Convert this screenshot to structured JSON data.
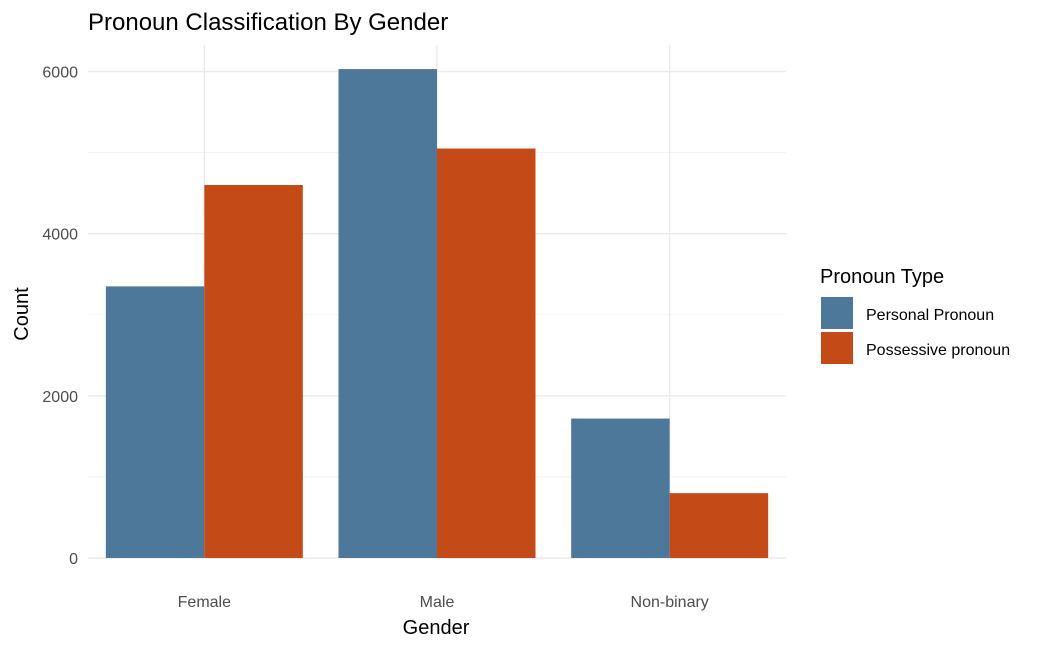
{
  "chart_data": {
    "type": "bar",
    "title": "Pronoun Classification By Gender",
    "xlabel": "Gender",
    "ylabel": "Count",
    "categories": [
      "Female",
      "Male",
      "Non-binary"
    ],
    "series": [
      {
        "name": "Personal Pronoun",
        "color": "#4e7899",
        "values": [
          3350,
          6030,
          1720
        ]
      },
      {
        "name": "Possessive pronoun",
        "color": "#c44a18",
        "values": [
          4600,
          5050,
          800
        ]
      }
    ],
    "ylim": [
      0,
      6300
    ],
    "y_ticks": [
      0,
      2000,
      4000,
      6000
    ],
    "y_tick_labels": [
      "0",
      "2000",
      "4000",
      "6000"
    ],
    "grid": true,
    "legend": {
      "title": "Pronoun Type",
      "placement": "right"
    }
  }
}
